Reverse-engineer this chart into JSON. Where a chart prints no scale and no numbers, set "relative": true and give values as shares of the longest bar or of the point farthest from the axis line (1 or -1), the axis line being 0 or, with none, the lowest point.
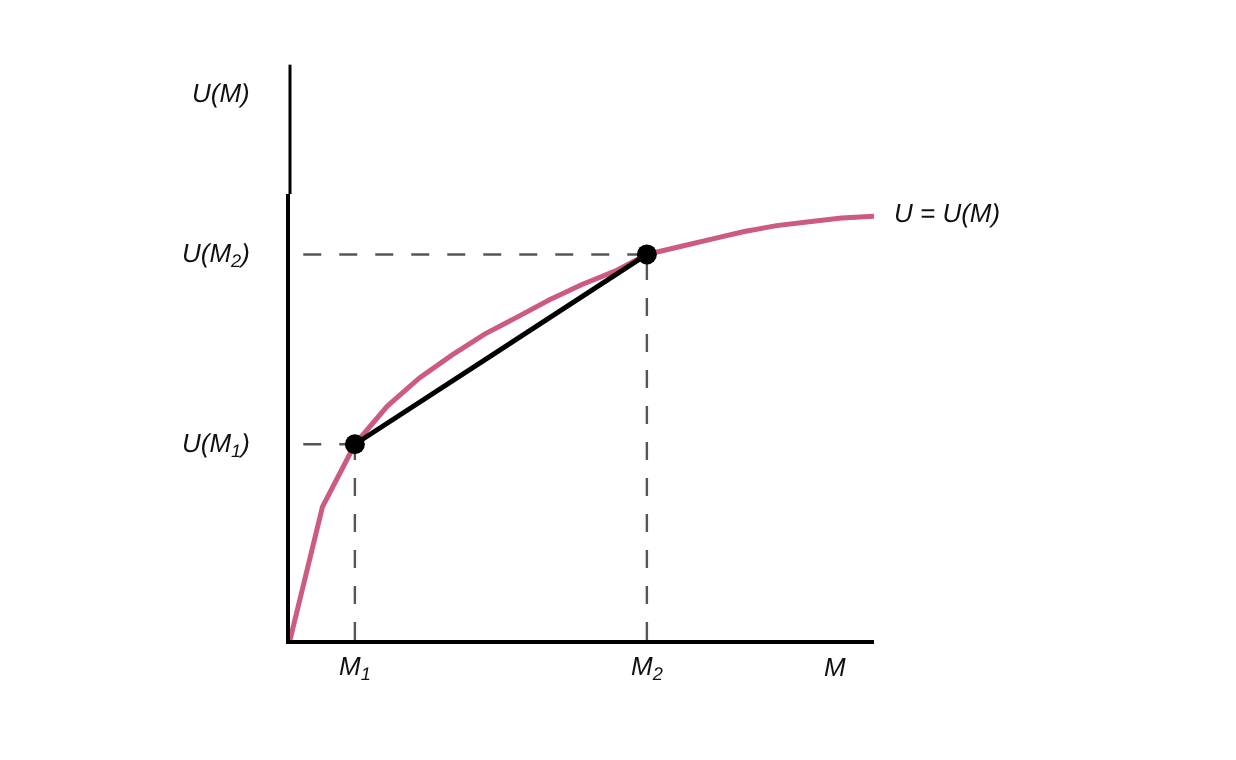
{
  "chart_data": {
    "type": "line",
    "relative": true,
    "xlabel": "M",
    "ylabel": "U(M)",
    "categories": [
      null,
      null,
      "M$_{1}$",
      null,
      null,
      null,
      null,
      null,
      null,
      null,
      null,
      "M$_{2}$",
      null,
      null,
      null,
      null,
      null,
      null,
      null
    ],
    "series": [
      {
        "color": "#cc5a82",
        "values": [
          0,
          0.314,
          0.462,
          0.552,
          0.619,
          0.673,
          0.722,
          0.762,
          0.803,
          0.839,
          0.87,
          0.91,
          0.928,
          0.946,
          0.964,
          0.978,
          0.987,
          0.996,
          1
        ],
        "marker": "none"
      },
      {
        "color": "#000000",
        "values": [
          null,
          null,
          0.462,
          null,
          null,
          null,
          null,
          null,
          null,
          null,
          null,
          0.91,
          null,
          null,
          null,
          null,
          null,
          null,
          null
        ],
        "marker": "circle"
      }
    ],
    "annotations": [
      "U = U(M)"
    ],
    "ref_lines": [
      {
        "axis": "y",
        "value": 0.462,
        "label": "U(M$_{1}$)",
        "color": "#555555",
        "line_style": "dashed"
      },
      {
        "axis": "y",
        "value": 0.91,
        "label": "U(M$_{2}$)",
        "color": "#555555",
        "line_style": "dashed"
      },
      {
        "axis": "x",
        "value": "M$_{1}$",
        "color": "#555555",
        "line_style": "dashed"
      },
      {
        "axis": "x",
        "value": "M$_{2}$",
        "color": "#555555",
        "line_style": "dashed"
      }
    ],
    "line_style": "solid",
    "grid": false,
    "tick_labels": "x"
  }
}
